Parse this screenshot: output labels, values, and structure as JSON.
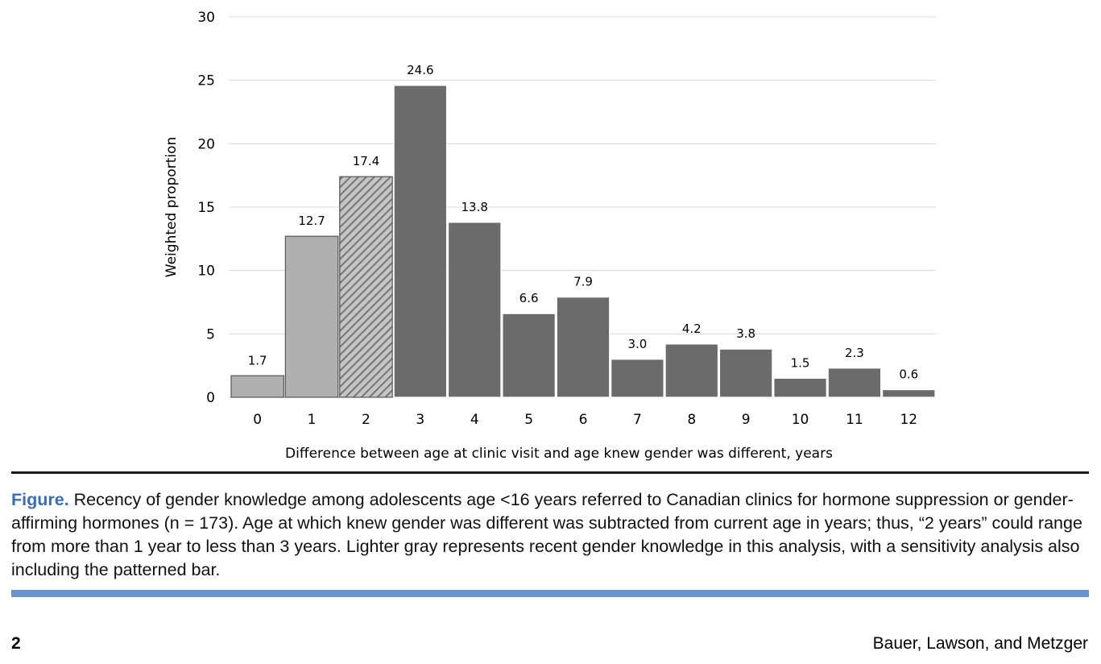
{
  "chart_data": {
    "type": "bar",
    "categories": [
      "0",
      "1",
      "2",
      "3",
      "4",
      "5",
      "6",
      "7",
      "8",
      "9",
      "10",
      "11",
      "12"
    ],
    "values": [
      1.7,
      12.7,
      17.4,
      24.6,
      13.8,
      6.6,
      7.9,
      3.0,
      4.2,
      3.8,
      1.5,
      2.3,
      0.6
    ],
    "data_labels": [
      "1.7",
      "12.7",
      "17.4",
      "24.6",
      "13.8",
      "6.6",
      "7.9",
      "3.0",
      "4.2",
      "3.8",
      "1.5",
      "2.3",
      "0.6"
    ],
    "bar_styles": [
      "light",
      "light",
      "patterned",
      "dark",
      "dark",
      "dark",
      "dark",
      "dark",
      "dark",
      "dark",
      "dark",
      "dark",
      "dark"
    ],
    "colors": {
      "light": "#b0b0b0",
      "dark": "#6b6b6b",
      "outline": "#ffffff",
      "pattern_stripe": "#6b6b6b",
      "pattern_bg": "#c4c4c4",
      "grid": "#d9d9d9"
    },
    "xlabel": "Difference between age at clinic visit and age knew gender was different, years",
    "ylabel": "Weighted proportion",
    "ylim": [
      0,
      30
    ],
    "yticks": [
      "0",
      "5",
      "10",
      "15",
      "20",
      "25",
      "30"
    ],
    "grid": true
  },
  "caption": {
    "label": "Figure.",
    "text": " Recency of gender knowledge among adolescents age <16 years referred to Canadian clinics for hormone suppression or gender-affirming hormones (n = 173). Age at which knew gender was different was subtracted from current age in years; thus, “2 years” could range from more than 1 year to less than 3 years. Lighter gray represents recent gender knowledge in this analysis, with a sensitivity analysis also including the patterned bar."
  },
  "footer": {
    "page_number": "2",
    "authors": "Bauer, Lawson, and Metzger"
  }
}
